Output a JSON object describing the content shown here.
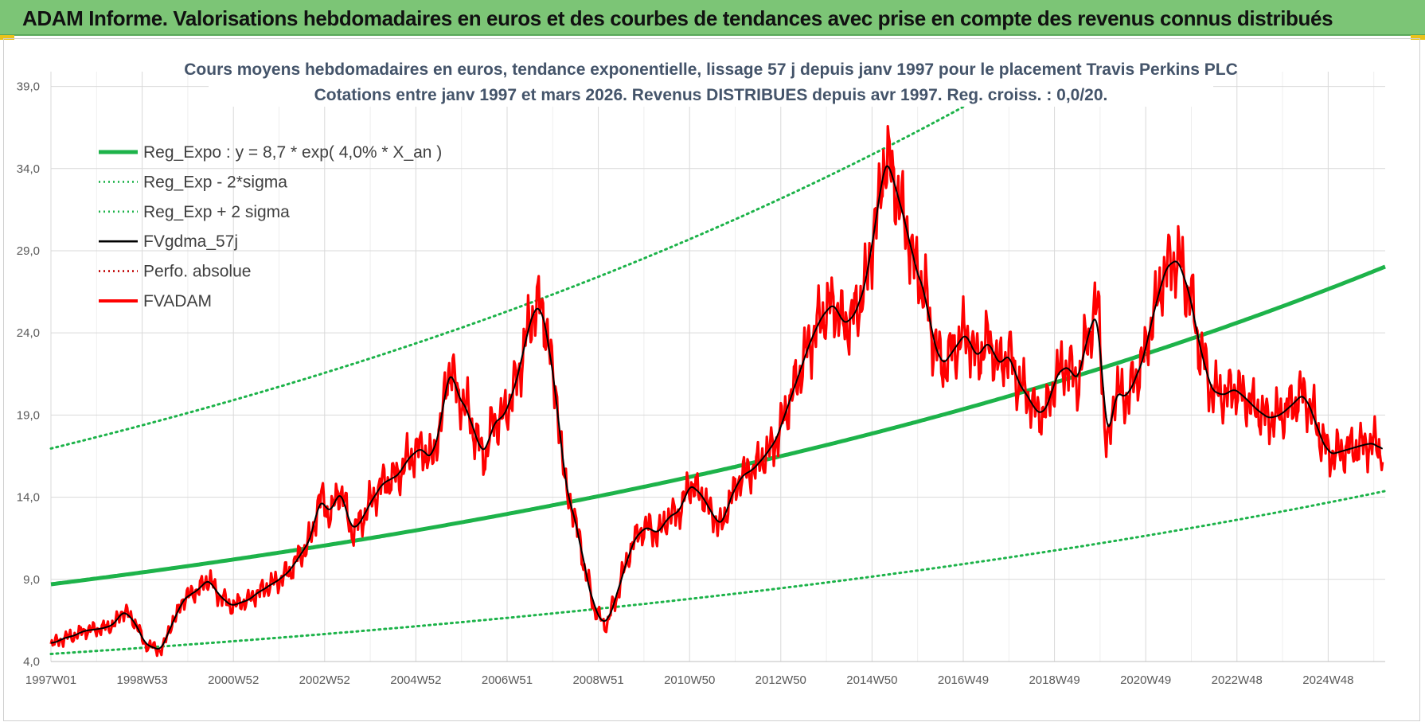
{
  "header": {
    "title": "ADAM Informe. Valorisations hebdomadaires en euros et des courbes de tendances avec prise en compte des revenus connus distribués"
  },
  "colors": {
    "banner": "#7cc576",
    "regression": "#1db34a",
    "smoothing": "#000000",
    "price": "#ff0000",
    "perfo": "#c00000"
  },
  "chart_data": {
    "type": "line",
    "title": "Cours moyens hebdomadaires en euros, tendance exponentielle, lissage 57 j depuis janv 1997 pour le placement Travis Perkins PLC",
    "subtitle": "Cotations entre janv 1997 et mars 2026. Revenus DISTRIBUES depuis avr 1997. Reg. croiss. : 0,0/20.",
    "xlabel": "",
    "ylabel": "",
    "ylim": [
      4,
      39.9
    ],
    "xlim": [
      1997.0,
      2026.25
    ],
    "y_ticks": [
      "4,0",
      "9,0",
      "14,0",
      "19,0",
      "24,0",
      "29,0",
      "34,0",
      "39,0"
    ],
    "x_ticks": [
      {
        "x": 1997.0,
        "label": "1997W01"
      },
      {
        "x": 1999.0,
        "label": "1998W53"
      },
      {
        "x": 2001.0,
        "label": "2000W52"
      },
      {
        "x": 2003.0,
        "label": "2002W52"
      },
      {
        "x": 2005.0,
        "label": "2004W52"
      },
      {
        "x": 2007.0,
        "label": "2006W51"
      },
      {
        "x": 2009.0,
        "label": "2008W51"
      },
      {
        "x": 2011.0,
        "label": "2010W50"
      },
      {
        "x": 2013.0,
        "label": "2012W50"
      },
      {
        "x": 2015.0,
        "label": "2014W50"
      },
      {
        "x": 2017.0,
        "label": "2016W49"
      },
      {
        "x": 2019.0,
        "label": "2018W49"
      },
      {
        "x": 2021.0,
        "label": "2020W49"
      },
      {
        "x": 2023.0,
        "label": "2022W48"
      },
      {
        "x": 2025.0,
        "label": "2024W48"
      }
    ],
    "grid": true,
    "legend_position": "top-left",
    "regression": {
      "a": 8.7,
      "rate": 0.04,
      "start": 1997.0,
      "sigma_factor": 1.95
    },
    "series": [
      {
        "name": "Reg_Expo : y = 8,7 * exp( 4,0% *  X_an )",
        "style": "solid-thick",
        "color": "#1db34a"
      },
      {
        "name": "Reg_Exp - 2*sigma",
        "style": "dotted",
        "color": "#1db34a"
      },
      {
        "name": "Reg_Exp + 2 sigma",
        "style": "dotted",
        "color": "#1db34a"
      },
      {
        "name": "FVgdma_57j",
        "style": "solid",
        "color": "#000000"
      },
      {
        "name": "Perfo. absolue",
        "style": "dotted",
        "color": "#c00000"
      },
      {
        "name": "FVADAM",
        "style": "solid-thick",
        "color": "#ff0000"
      }
    ],
    "price_points": [
      [
        1997.0,
        5.1
      ],
      [
        1997.4,
        5.5
      ],
      [
        1997.8,
        5.9
      ],
      [
        1998.1,
        6.0
      ],
      [
        1998.35,
        6.2
      ],
      [
        1998.6,
        7.1
      ],
      [
        1998.8,
        6.5
      ],
      [
        1999.1,
        5.0
      ],
      [
        1999.4,
        4.7
      ],
      [
        1999.7,
        6.5
      ],
      [
        1999.9,
        7.8
      ],
      [
        2000.2,
        8.3
      ],
      [
        2000.45,
        9.0
      ],
      [
        2000.7,
        8.0
      ],
      [
        2000.95,
        7.4
      ],
      [
        2001.3,
        7.7
      ],
      [
        2001.6,
        8.3
      ],
      [
        2001.9,
        8.8
      ],
      [
        2002.2,
        9.4
      ],
      [
        2002.45,
        10.4
      ],
      [
        2002.7,
        11.5
      ],
      [
        2002.9,
        14.0
      ],
      [
        2003.1,
        13.0
      ],
      [
        2003.35,
        14.4
      ],
      [
        2003.6,
        12.0
      ],
      [
        2003.8,
        12.5
      ],
      [
        2004.0,
        13.7
      ],
      [
        2004.3,
        14.9
      ],
      [
        2004.6,
        15.3
      ],
      [
        2004.85,
        16.4
      ],
      [
        2005.1,
        17.0
      ],
      [
        2005.35,
        16.3
      ],
      [
        2005.5,
        18.0
      ],
      [
        2005.75,
        21.9
      ],
      [
        2005.95,
        20.0
      ],
      [
        2006.1,
        19.5
      ],
      [
        2006.3,
        17.8
      ],
      [
        2006.5,
        16.5
      ],
      [
        2006.7,
        18.5
      ],
      [
        2006.95,
        19.0
      ],
      [
        2007.2,
        21.0
      ],
      [
        2007.45,
        24.0
      ],
      [
        2007.65,
        25.9
      ],
      [
        2007.85,
        24.5
      ],
      [
        2008.05,
        20.5
      ],
      [
        2008.3,
        14.5
      ],
      [
        2008.55,
        12.0
      ],
      [
        2008.75,
        9.0
      ],
      [
        2008.95,
        7.0
      ],
      [
        2009.15,
        6.2
      ],
      [
        2009.35,
        7.5
      ],
      [
        2009.55,
        9.5
      ],
      [
        2009.8,
        11.5
      ],
      [
        2010.05,
        12.2
      ],
      [
        2010.3,
        11.8
      ],
      [
        2010.55,
        12.8
      ],
      [
        2010.8,
        13.2
      ],
      [
        2011.0,
        14.8
      ],
      [
        2011.25,
        14.2
      ],
      [
        2011.5,
        13.0
      ],
      [
        2011.7,
        12.2
      ],
      [
        2011.9,
        14.0
      ],
      [
        2012.15,
        15.3
      ],
      [
        2012.4,
        15.7
      ],
      [
        2012.65,
        16.5
      ],
      [
        2012.9,
        17.5
      ],
      [
        2013.15,
        19.5
      ],
      [
        2013.4,
        21.5
      ],
      [
        2013.65,
        23.5
      ],
      [
        2013.9,
        25.0
      ],
      [
        2014.15,
        25.8
      ],
      [
        2014.4,
        24.5
      ],
      [
        2014.65,
        25.2
      ],
      [
        2014.85,
        27.0
      ],
      [
        2015.1,
        31.0
      ],
      [
        2015.3,
        34.8
      ],
      [
        2015.5,
        33.0
      ],
      [
        2015.75,
        30.5
      ],
      [
        2015.95,
        28.0
      ],
      [
        2016.15,
        26.5
      ],
      [
        2016.35,
        23.5
      ],
      [
        2016.55,
        22.0
      ],
      [
        2016.8,
        23.0
      ],
      [
        2017.05,
        24.0
      ],
      [
        2017.3,
        22.5
      ],
      [
        2017.55,
        23.5
      ],
      [
        2017.8,
        22.0
      ],
      [
        2018.0,
        22.8
      ],
      [
        2018.2,
        21.0
      ],
      [
        2018.45,
        20.0
      ],
      [
        2018.65,
        19.0
      ],
      [
        2018.85,
        19.5
      ],
      [
        2019.05,
        21.5
      ],
      [
        2019.3,
        22.0
      ],
      [
        2019.5,
        21.0
      ],
      [
        2019.75,
        24.0
      ],
      [
        2019.95,
        25.5
      ],
      [
        2020.15,
        17.0
      ],
      [
        2020.35,
        20.5
      ],
      [
        2020.55,
        20.0
      ],
      [
        2020.75,
        21.0
      ],
      [
        2020.95,
        22.5
      ],
      [
        2021.2,
        25.5
      ],
      [
        2021.45,
        28.0
      ],
      [
        2021.7,
        28.5
      ],
      [
        2021.95,
        26.5
      ],
      [
        2022.2,
        23.0
      ],
      [
        2022.45,
        20.5
      ],
      [
        2022.7,
        20.2
      ],
      [
        2022.95,
        20.6
      ],
      [
        2023.2,
        20.0
      ],
      [
        2023.45,
        19.3
      ],
      [
        2023.7,
        18.8
      ],
      [
        2023.95,
        19.0
      ],
      [
        2024.2,
        19.6
      ],
      [
        2024.45,
        20.3
      ],
      [
        2024.65,
        19.2
      ],
      [
        2024.85,
        17.5
      ],
      [
        2025.05,
        16.6
      ],
      [
        2025.3,
        16.8
      ],
      [
        2025.55,
        17.0
      ],
      [
        2025.8,
        17.2
      ],
      [
        2026.0,
        17.3
      ],
      [
        2026.2,
        16.8
      ]
    ]
  }
}
